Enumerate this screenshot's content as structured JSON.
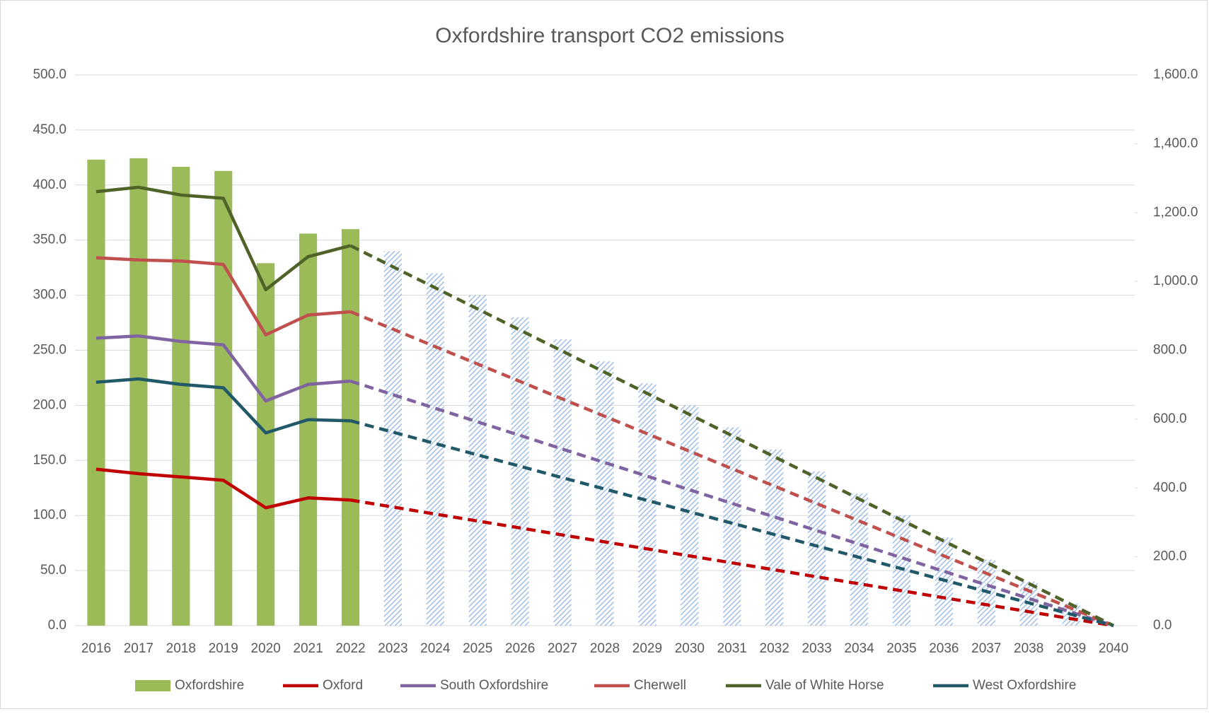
{
  "chart_data": {
    "type": "combo",
    "title": "Oxfordshire transport CO2 emissions",
    "categories": [
      "2016",
      "2017",
      "2018",
      "2019",
      "2020",
      "2021",
      "2022",
      "2023",
      "2024",
      "2025",
      "2026",
      "2027",
      "2028",
      "2029",
      "2030",
      "2031",
      "2032",
      "2033",
      "2034",
      "2035",
      "2036",
      "2037",
      "2038",
      "2039",
      "2040"
    ],
    "projection_from": "2022",
    "ylim": [
      0,
      500
    ],
    "yticks": [
      {
        "value": 0,
        "label": "0.0"
      },
      {
        "value": 50,
        "label": "50.0"
      },
      {
        "value": 100,
        "label": "100.0"
      },
      {
        "value": 150,
        "label": "150.0"
      },
      {
        "value": 200,
        "label": "200.0"
      },
      {
        "value": 250,
        "label": "250.0"
      },
      {
        "value": 300,
        "label": "300.0"
      },
      {
        "value": 350,
        "label": "350.0"
      },
      {
        "value": 400,
        "label": "400.0"
      },
      {
        "value": 450,
        "label": "450.0"
      },
      {
        "value": 500,
        "label": "500.0"
      }
    ],
    "y2lim": [
      0,
      1600
    ],
    "y2ticks": [
      {
        "value": 0,
        "label": "0.0"
      },
      {
        "value": 200,
        "label": "200.0"
      },
      {
        "value": 400,
        "label": "400.0"
      },
      {
        "value": 600,
        "label": "600.0"
      },
      {
        "value": 800,
        "label": "800.0"
      },
      {
        "value": 1000,
        "label": "1,000.0"
      },
      {
        "value": 1200,
        "label": "1,200.0"
      },
      {
        "value": 1400,
        "label": "1,400.0"
      },
      {
        "value": 1600,
        "label": "1,600.0"
      }
    ],
    "grid": true,
    "legend": "bottom",
    "series": [
      {
        "name": "Oxfordshire",
        "type": "bar",
        "axis": "y2",
        "color": "#9bbb59",
        "values": [
          1354,
          1358,
          1333,
          1321,
          1053,
          1139,
          1152,
          null,
          null,
          null,
          null,
          null,
          null,
          null,
          null,
          null,
          null,
          null,
          null,
          null,
          null,
          null,
          null,
          null,
          null
        ]
      },
      {
        "type": "bar",
        "axis": "y2",
        "color": "#8eb4e3",
        "pattern": "hatch",
        "values": [
          null,
          null,
          null,
          null,
          null,
          null,
          null,
          1088,
          1024,
          960,
          896,
          832,
          768,
          704,
          640,
          576,
          512,
          448,
          384,
          320,
          256,
          192,
          128,
          64,
          0
        ]
      },
      {
        "name": "Oxford",
        "type": "line",
        "axis": "y",
        "color": "#c00000",
        "values": [
          142,
          138,
          135,
          132,
          107,
          116,
          114,
          107.7,
          101.3,
          95,
          88.7,
          82.3,
          76,
          69.7,
          63.3,
          57,
          50.7,
          44.3,
          38,
          31.7,
          25.3,
          19,
          12.7,
          6.3,
          0
        ]
      },
      {
        "name": "South Oxfordshire",
        "type": "line",
        "axis": "y",
        "color": "#8064a2",
        "values": [
          261,
          263,
          258,
          255,
          204,
          219,
          222,
          209.7,
          197.3,
          185,
          172.7,
          160.3,
          148,
          135.7,
          123.3,
          111,
          98.7,
          86.3,
          74,
          61.7,
          49.3,
          37,
          24.7,
          12.3,
          0
        ]
      },
      {
        "name": "Cherwell",
        "type": "line",
        "axis": "y",
        "color": "#c0504d",
        "values": [
          334,
          332,
          331,
          328,
          264,
          282,
          285,
          269.2,
          253.3,
          237.5,
          221.7,
          205.8,
          190,
          174.2,
          158.3,
          142.5,
          126.7,
          110.8,
          95,
          79.2,
          63.3,
          47.5,
          31.7,
          15.8,
          0
        ]
      },
      {
        "name": "Vale of White Horse",
        "type": "line",
        "axis": "y",
        "color": "#4f6228",
        "values": [
          394,
          398,
          391,
          388,
          305,
          335,
          345,
          325.8,
          306.7,
          287.5,
          268.3,
          249.2,
          230,
          210.8,
          191.7,
          172.5,
          153.3,
          134.2,
          115,
          95.8,
          76.7,
          57.5,
          38.3,
          19.2,
          0
        ]
      },
      {
        "name": "West Oxfordshire",
        "type": "line",
        "axis": "y",
        "color": "#215968",
        "values": [
          221,
          224,
          219,
          216,
          175,
          187,
          186,
          175.7,
          165.3,
          155,
          144.7,
          134.3,
          124,
          113.7,
          103.3,
          93,
          82.7,
          72.3,
          62,
          51.7,
          41.3,
          31,
          20.7,
          10.3,
          0
        ]
      }
    ]
  }
}
